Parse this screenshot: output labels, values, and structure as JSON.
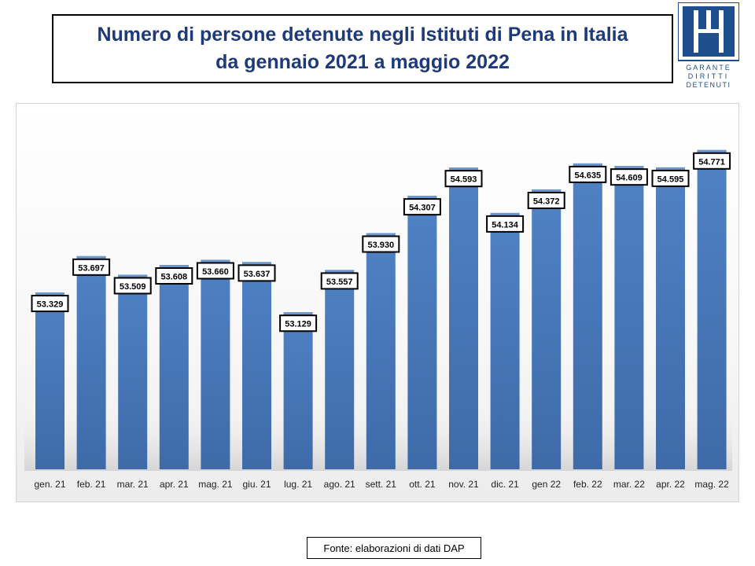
{
  "title": {
    "line1": "Numero di persone detenute negli Istituti di Pena in Italia",
    "line2": "da gennaio 2021 a maggio 2022"
  },
  "logo": {
    "text": "GARANTE DIRITTI DETENUTI",
    "color": "#1f4e8c"
  },
  "source": "Fonte: elaborazioni di dati DAP",
  "colors": {
    "bar": "#4a7bbd",
    "bar_top": "#6b96cf",
    "title": "#1f3a78"
  },
  "chart_data": {
    "type": "bar",
    "categories": [
      "gen. 21",
      "feb. 21",
      "mar. 21",
      "apr. 21",
      "mag. 21",
      "giu. 21",
      "lug. 21",
      "ago. 21",
      "sett. 21",
      "ott. 21",
      "nov. 21",
      "dic. 21",
      "gen 22",
      "feb. 22",
      "mar. 22",
      "apr. 22",
      "mag. 22"
    ],
    "values": [
      53329,
      53697,
      53509,
      53608,
      53660,
      53637,
      53129,
      53557,
      53930,
      54307,
      54593,
      54134,
      54372,
      54635,
      54609,
      54595,
      54771
    ],
    "data_labels": [
      "53.329",
      "53.697",
      "53.509",
      "53.608",
      "53.660",
      "53.637",
      "53.129",
      "53.557",
      "53.930",
      "54.307",
      "54.593",
      "54.134",
      "54.372",
      "54.635",
      "54.609",
      "54.595",
      "54.771"
    ],
    "title": "Numero di persone detenute negli Istituti di Pena in Italia da gennaio 2021 a maggio 2022",
    "xlabel": "",
    "ylabel": "",
    "ylim": [
      51540,
      55000
    ],
    "grid": false,
    "legend": "none"
  }
}
